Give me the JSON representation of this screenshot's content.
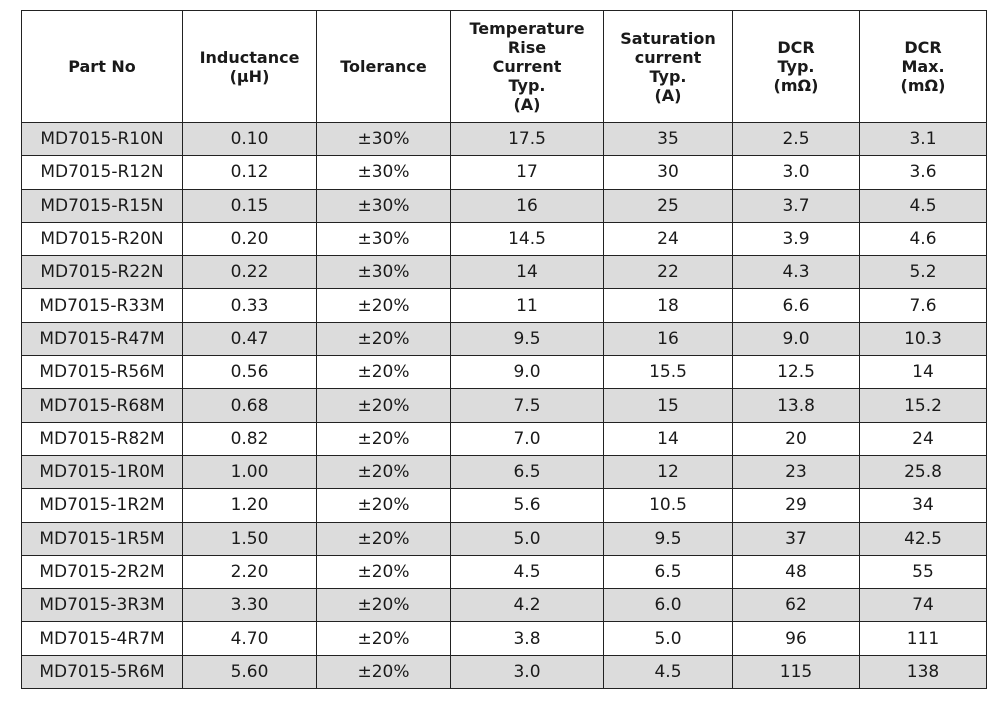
{
  "table": {
    "headers": [
      [
        "Part No"
      ],
      [
        "Inductance",
        "(μH)"
      ],
      [
        "Tolerance"
      ],
      [
        "Temperature Rise",
        "Current",
        "Typ.",
        "(A)"
      ],
      [
        "Saturation",
        "current",
        "Typ.",
        "(A)"
      ],
      [
        "DCR",
        "Typ.",
        "(mΩ)"
      ],
      [
        "DCR",
        "Max.",
        "(mΩ)"
      ]
    ],
    "rows": [
      [
        "MD7015-R10N",
        "0.10",
        "±30%",
        "17.5",
        "35",
        "2.5",
        "3.1"
      ],
      [
        "MD7015-R12N",
        "0.12",
        "±30%",
        "17",
        "30",
        "3.0",
        "3.6"
      ],
      [
        "MD7015-R15N",
        "0.15",
        "±30%",
        "16",
        "25",
        "3.7",
        "4.5"
      ],
      [
        "MD7015-R20N",
        "0.20",
        "±30%",
        "14.5",
        "24",
        "3.9",
        "4.6"
      ],
      [
        "MD7015-R22N",
        "0.22",
        "±30%",
        "14",
        "22",
        "4.3",
        "5.2"
      ],
      [
        "MD7015-R33M",
        "0.33",
        "±20%",
        "11",
        "18",
        "6.6",
        "7.6"
      ],
      [
        "MD7015-R47M",
        "0.47",
        "±20%",
        "9.5",
        "16",
        "9.0",
        "10.3"
      ],
      [
        "MD7015-R56M",
        "0.56",
        "±20%",
        "9.0",
        "15.5",
        "12.5",
        "14"
      ],
      [
        "MD7015-R68M",
        "0.68",
        "±20%",
        "7.5",
        "15",
        "13.8",
        "15.2"
      ],
      [
        "MD7015-R82M",
        "0.82",
        "±20%",
        "7.0",
        "14",
        "20",
        "24"
      ],
      [
        "MD7015-1R0M",
        "1.00",
        "±20%",
        "6.5",
        "12",
        "23",
        "25.8"
      ],
      [
        "MD7015-1R2M",
        "1.20",
        "±20%",
        "5.6",
        "10.5",
        "29",
        "34"
      ],
      [
        "MD7015-1R5M",
        "1.50",
        "±20%",
        "5.0",
        "9.5",
        "37",
        "42.5"
      ],
      [
        "MD7015-2R2M",
        "2.20",
        "±20%",
        "4.5",
        "6.5",
        "48",
        "55"
      ],
      [
        "MD7015-3R3M",
        "3.30",
        "±20%",
        "4.2",
        "6.0",
        "62",
        "74"
      ],
      [
        "MD7015-4R7M",
        "4.70",
        "±20%",
        "3.8",
        "5.0",
        "96",
        "111"
      ],
      [
        "MD7015-5R6M",
        "5.60",
        "±20%",
        "3.0",
        "4.5",
        "115",
        "138"
      ]
    ]
  },
  "colors": {
    "stripe": "#dcdcdc",
    "border": "#222222",
    "text": "#1a1a1a"
  }
}
